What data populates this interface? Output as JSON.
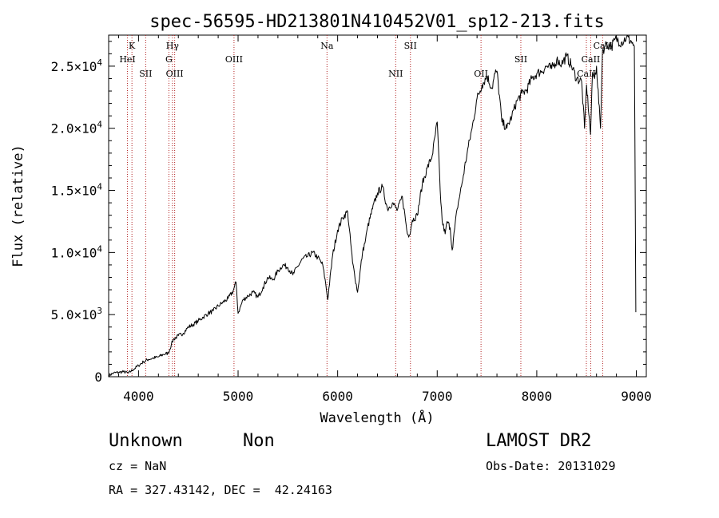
{
  "chart_data": {
    "type": "line",
    "title": "spec-56595-HD213801N410452V01_sp12-213.fits",
    "xlabel": "Wavelength (Å)",
    "ylabel": "Flux (relative)",
    "xlim": [
      3700,
      9100
    ],
    "ylim": [
      0,
      27500
    ],
    "x_ticks": [
      4000,
      5000,
      6000,
      7000,
      8000,
      9000
    ],
    "y_ticks": [
      0,
      5000,
      10000,
      15000,
      20000,
      25000
    ],
    "y_tick_labels": [
      {
        "value": 0,
        "mantissa": "0",
        "exp": ""
      },
      {
        "value": 5000,
        "mantissa": "5.0×10",
        "exp": "3"
      },
      {
        "value": 10000,
        "mantissa": "1.0×10",
        "exp": "4"
      },
      {
        "value": 15000,
        "mantissa": "1.5×10",
        "exp": "4"
      },
      {
        "value": 20000,
        "mantissa": "2.0×10",
        "exp": "4"
      },
      {
        "value": 25000,
        "mantissa": "2.5×10",
        "exp": "4"
      }
    ],
    "grid": false,
    "line_color": "#000000",
    "marker_color": "#b22222",
    "series": [
      {
        "x": [
          3700,
          3750,
          3800,
          3850,
          3900,
          3950,
          4000,
          4050,
          4100,
          4150,
          4200,
          4250,
          4300,
          4330,
          4350,
          4400,
          4450,
          4500,
          4550,
          4600,
          4650,
          4700,
          4750,
          4800,
          4850,
          4900,
          4950,
          4980,
          5000,
          5050,
          5100,
          5150,
          5200,
          5250,
          5300,
          5350,
          5400,
          5450,
          5500,
          5550,
          5600,
          5650,
          5700,
          5750,
          5800,
          5850,
          5880,
          5900,
          5950,
          6000,
          6050,
          6100,
          6150,
          6200,
          6250,
          6280,
          6300,
          6350,
          6400,
          6450,
          6500,
          6550,
          6600,
          6650,
          6700,
          6720,
          6750,
          6800,
          6850,
          6900,
          6950,
          7000,
          7030,
          7050,
          7080,
          7100,
          7130,
          7150,
          7200,
          7250,
          7300,
          7350,
          7400,
          7450,
          7500,
          7550,
          7580,
          7600,
          7650,
          7700,
          7750,
          7800,
          7850,
          7900,
          7950,
          8000,
          8050,
          8100,
          8150,
          8200,
          8250,
          8300,
          8350,
          8400,
          8450,
          8480,
          8500,
          8540,
          8560,
          8580,
          8600,
          8640,
          8660,
          8680,
          8700,
          8750,
          8800,
          8850,
          8900,
          8950,
          8980,
          8995
        ],
        "y": [
          100,
          300,
          350,
          400,
          300,
          600,
          900,
          1200,
          1400,
          1500,
          1600,
          1800,
          1900,
          2600,
          3000,
          3300,
          3500,
          4000,
          4200,
          4500,
          4800,
          5100,
          5300,
          5700,
          6000,
          6300,
          6900,
          7600,
          5100,
          6200,
          6500,
          6800,
          6400,
          7200,
          8000,
          7800,
          8500,
          9000,
          8800,
          8200,
          8900,
          9500,
          9700,
          10000,
          9600,
          9000,
          7500,
          6200,
          9800,
          11800,
          12800,
          13300,
          9200,
          6800,
          10000,
          11000,
          12000,
          13500,
          14800,
          15300,
          13500,
          14000,
          13400,
          14500,
          11500,
          11400,
          12600,
          13000,
          15500,
          16800,
          17800,
          20500,
          15000,
          12500,
          11500,
          12500,
          12000,
          10200,
          13500,
          15600,
          18000,
          20000,
          22400,
          23500,
          24200,
          23200,
          24400,
          24600,
          20500,
          20000,
          21000,
          22200,
          22800,
          23100,
          24000,
          24400,
          24600,
          25000,
          24800,
          25500,
          25200,
          25800,
          25000,
          24000,
          23800,
          20000,
          23500,
          19500,
          24500,
          24000,
          25000,
          20000,
          26300,
          26500,
          26800,
          26600,
          27200,
          26900,
          27300,
          27000,
          26600,
          5200
        ]
      }
    ],
    "markers": [
      {
        "wavelength": 3889,
        "label": "HeI",
        "row": 2
      },
      {
        "wavelength": 3934,
        "label": "K",
        "row": 1
      },
      {
        "wavelength": 4072,
        "label": "SII",
        "row": 3
      },
      {
        "wavelength": 4305,
        "label": "G",
        "row": 2
      },
      {
        "wavelength": 4341,
        "label": "Hγ",
        "row": 1
      },
      {
        "wavelength": 4363,
        "label": "OIII",
        "row": 3
      },
      {
        "wavelength": 4959,
        "label": "OIII",
        "row": 2
      },
      {
        "wavelength": 5893,
        "label": "Na",
        "row": 1
      },
      {
        "wavelength": 6583,
        "label": "NII",
        "row": 3
      },
      {
        "wavelength": 6731,
        "label": "SII",
        "row": 1
      },
      {
        "wavelength": 7440,
        "label": "OII",
        "row": 3
      },
      {
        "wavelength": 7840,
        "label": "SII",
        "row": 2
      },
      {
        "wavelength": 8498,
        "label": "CaII",
        "row": 3
      },
      {
        "wavelength": 8542,
        "label": "CaII",
        "row": 2
      },
      {
        "wavelength": 8662,
        "label": "CaII",
        "row": 1
      }
    ]
  },
  "info": {
    "object_type": "Unknown",
    "object_class": "Non",
    "survey": "LAMOST DR2",
    "cz": "cz = NaN",
    "obs_date": "Obs-Date: 20131029",
    "coords": "RA = 327.43142, DEC =  42.24163"
  }
}
